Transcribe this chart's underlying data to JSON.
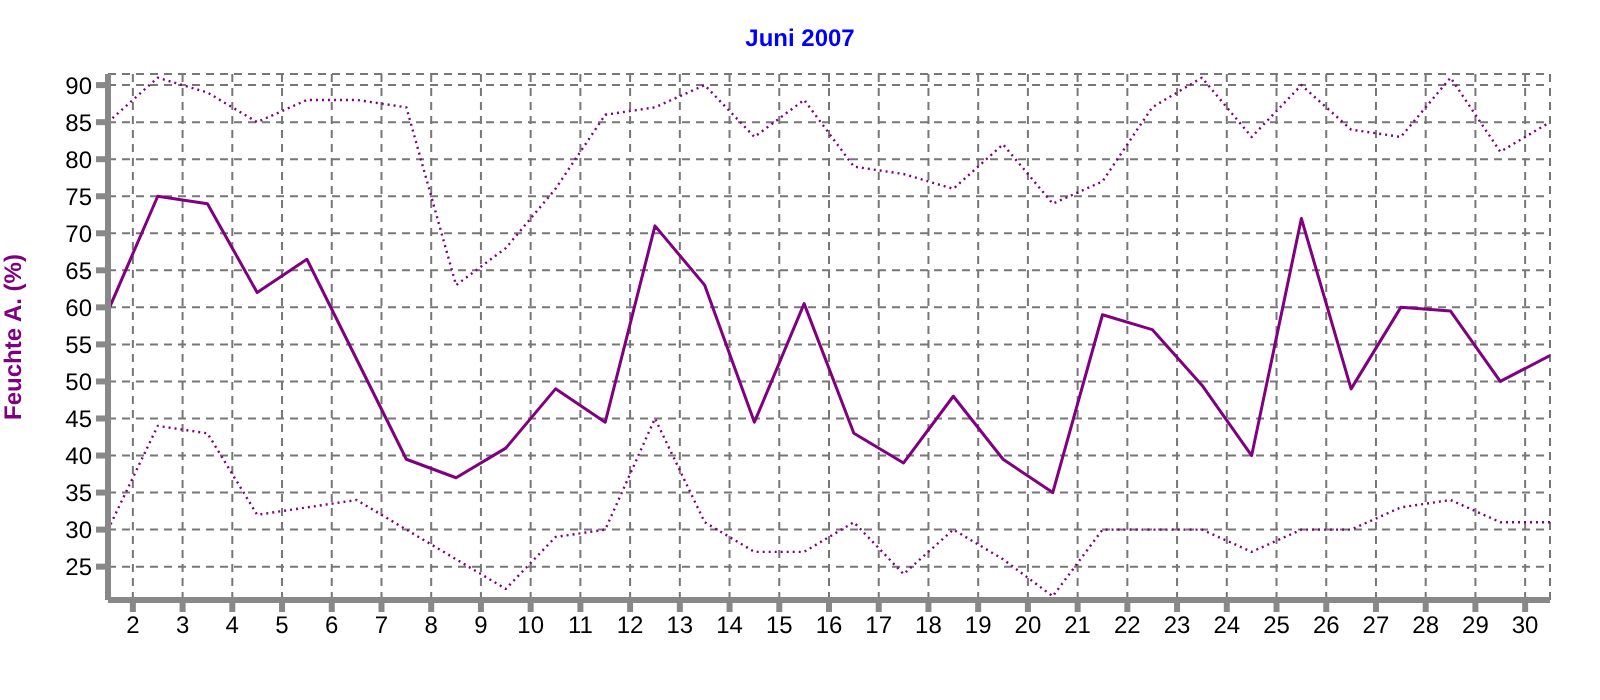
{
  "chart_data": {
    "type": "line",
    "title": "Juni 2007",
    "ylabel": "Feuchte A.  (%)",
    "x": [
      1.5,
      2.5,
      3.5,
      4.5,
      5.5,
      6.5,
      7.5,
      8.5,
      9.5,
      10.5,
      11.5,
      12.5,
      13.5,
      14.5,
      15.5,
      16.5,
      17.5,
      18.5,
      19.5,
      20.5,
      21.5,
      22.5,
      23.5,
      24.5,
      25.5,
      26.5,
      27.5,
      28.5,
      29.5,
      30.5
    ],
    "series": [
      {
        "color": "#800080",
        "line_style": "dotted",
        "values": [
          85,
          91,
          89,
          85,
          88,
          88,
          87,
          63,
          68,
          76,
          86,
          87,
          90,
          83,
          88,
          79,
          78,
          76,
          82,
          74,
          77,
          87,
          91,
          83,
          90,
          84,
          83,
          91,
          81,
          85
        ]
      },
      {
        "color": "#800080",
        "line_style": "solid",
        "values": [
          59.5,
          75,
          74,
          62,
          66.5,
          53,
          39.5,
          37,
          41,
          49,
          44.5,
          71,
          63,
          44.5,
          60.5,
          43,
          39,
          48,
          39.5,
          35,
          59,
          57,
          49.5,
          40,
          72,
          49,
          60,
          59.5,
          50,
          53.5
        ]
      },
      {
        "color": "#800080",
        "line_style": "dotted",
        "values": [
          30,
          44,
          43,
          32,
          33,
          34,
          30,
          26,
          22,
          29,
          30,
          45,
          31,
          27,
          27,
          31,
          24,
          30,
          26,
          21,
          30,
          30,
          30,
          27,
          30,
          30,
          33,
          34,
          31,
          31
        ]
      }
    ],
    "xlim": [
      1.5,
      30.5
    ],
    "xticks": [
      2,
      3,
      4,
      5,
      6,
      7,
      8,
      9,
      10,
      11,
      12,
      13,
      14,
      15,
      16,
      17,
      18,
      19,
      20,
      21,
      22,
      23,
      24,
      25,
      26,
      27,
      28,
      29,
      30
    ],
    "ylim": [
      20.5,
      91.5
    ],
    "yticks": [
      25,
      30,
      35,
      40,
      45,
      50,
      55,
      60,
      65,
      70,
      75,
      80,
      85,
      90
    ],
    "grid": true,
    "marker": "none"
  }
}
